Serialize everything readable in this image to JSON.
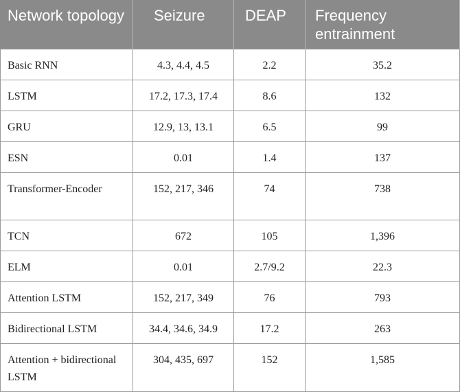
{
  "table": {
    "headers": [
      "Network topology",
      "Seizure",
      "DEAP",
      "Frequency entrainment"
    ],
    "rows": [
      [
        "Basic RNN",
        "4.3, 4.4, 4.5",
        "2.2",
        "35.2"
      ],
      [
        "LSTM",
        "17.2, 17.3, 17.4",
        "8.6",
        "132"
      ],
      [
        "GRU",
        "12.9, 13, 13.1",
        "6.5",
        "99"
      ],
      [
        "ESN",
        "0.01",
        "1.4",
        "137"
      ],
      [
        "Transformer-Encoder",
        "152, 217, 346",
        "74",
        "738"
      ],
      [
        "TCN",
        "672",
        "105",
        "1,396"
      ],
      [
        "ELM",
        "0.01",
        "2.7/9.2",
        "22.3"
      ],
      [
        "Attention LSTM",
        "152, 217, 349",
        "76",
        "793"
      ],
      [
        "Bidirectional LSTM",
        "34.4, 34.6, 34.9",
        "17.2",
        "263"
      ],
      [
        "Attention + bidirectional LSTM",
        "304, 435, 697",
        "152",
        "1,585"
      ]
    ]
  },
  "colors": {
    "header_bg": "#8a8a8a",
    "header_text": "#ffffff",
    "border": "#9a9a9a"
  }
}
